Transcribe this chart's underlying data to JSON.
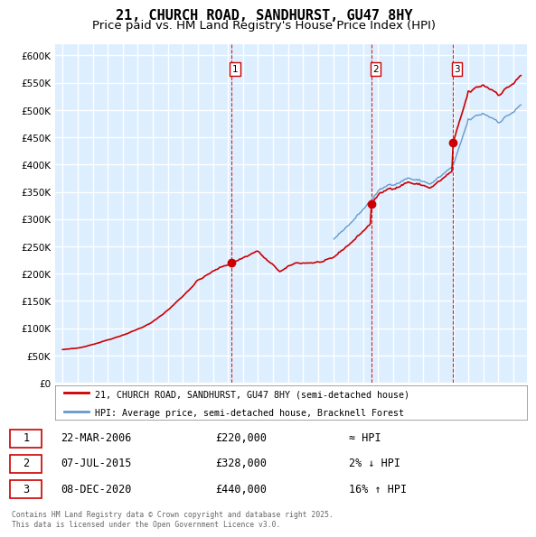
{
  "title_line1": "21, CHURCH ROAD, SANDHURST, GU47 8HY",
  "title_line2": "Price paid vs. HM Land Registry's House Price Index (HPI)",
  "legend_red": "21, CHURCH ROAD, SANDHURST, GU47 8HY (semi-detached house)",
  "legend_blue": "HPI: Average price, semi-detached house, Bracknell Forest",
  "sale_labels": [
    {
      "num": 1,
      "date": "22-MAR-2006",
      "price": 220000,
      "rel": "≈ HPI"
    },
    {
      "num": 2,
      "date": "07-JUL-2015",
      "price": 328000,
      "rel": "2% ↓ HPI"
    },
    {
      "num": 3,
      "date": "08-DEC-2020",
      "price": 440000,
      "rel": "16% ↑ HPI"
    }
  ],
  "sale_prices": [
    220000,
    328000,
    440000
  ],
  "footnote": "Contains HM Land Registry data © Crown copyright and database right 2025.\nThis data is licensed under the Open Government Licence v3.0.",
  "ylim": [
    0,
    620000
  ],
  "yticks": [
    0,
    50000,
    100000,
    150000,
    200000,
    250000,
    300000,
    350000,
    400000,
    450000,
    500000,
    550000,
    600000
  ],
  "bg_color": "#ddeeff",
  "grid_color": "#ffffff",
  "red_line_color": "#cc0000",
  "blue_line_color": "#6699cc",
  "vline_color": "#cc0000",
  "box_color": "#cc0000",
  "title_fontsize": 11,
  "subtitle_fontsize": 9.5
}
